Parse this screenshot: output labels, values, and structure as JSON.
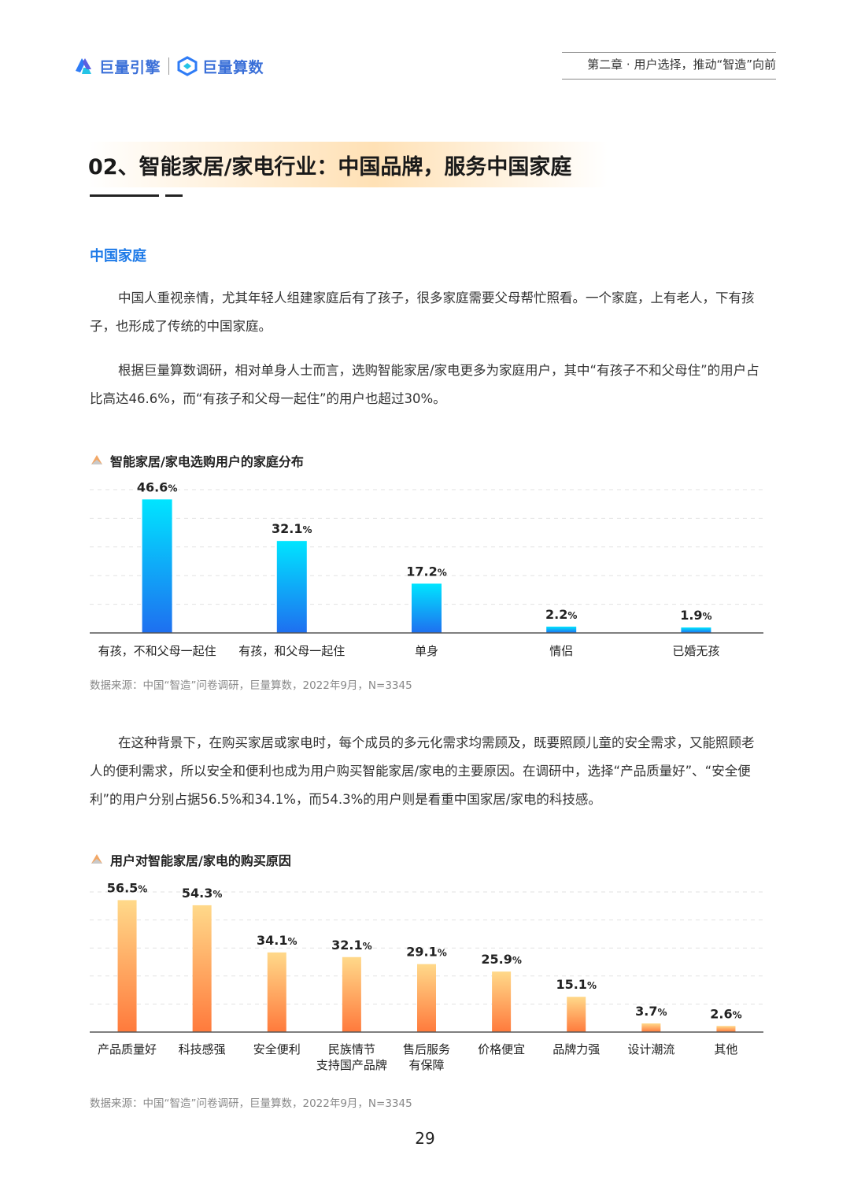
{
  "header": {
    "brand1": "巨量引擎",
    "brand2": "巨量算数",
    "chapter": "第二章 · 用户选择，推动“智造”向前"
  },
  "title": "02、智能家居/家电行业：中国品牌，服务中国家庭",
  "section_heading": "中国家庭",
  "paragraphs": [
    "中国人重视亲情，尤其年轻人组建家庭后有了孩子，很多家庭需要父母帮忙照看。一个家庭，上有老人，下有孩子，也形成了传统的中国家庭。",
    "根据巨量算数调研，相对单身人士而言，选购智能家居/家电更多为家庭用户，其中“有孩子不和父母住”的用户占比高达46.6%，而“有孩子和父母一起住”的用户也超过30%。",
    "在这种背景下，在购买家居或家电时，每个成员的多元化需求均需顾及，既要照顾儿童的安全需求，又能照顾老人的便利需求，所以安全和便利也成为用户购买智能家居/家电的主要原因。在调研中，选择“产品质量好”、“安全便利”的用户分别占据56.5%和34.1%，而54.3%的用户则是看重中国家居/家电的科技感。"
  ],
  "chart_data": [
    {
      "type": "bar",
      "title": "智能家居/家电选购用户的家庭分布",
      "categories": [
        "有孩，不和父母一起住",
        "有孩，和父母一起住",
        "单身",
        "情侣",
        "已婚无孩"
      ],
      "values": [
        46.6,
        32.1,
        17.2,
        2.2,
        1.9
      ],
      "unit": "%",
      "ylim": [
        0,
        50
      ],
      "grid": true,
      "colors": [
        "#00e5ff",
        "#1e6ff0"
      ],
      "source": "数据来源：中国“智造”问卷调研，巨量算数，2022年9月，N=3345"
    },
    {
      "type": "bar",
      "title": "用户对智能家居/家电的购买原因",
      "categories": [
        "产品质量好",
        "科技感强",
        "安全便利",
        "民族情节\n支持国产品牌",
        "售后服务\n有保障",
        "价格便宜",
        "品牌力强",
        "设计潮流",
        "其他"
      ],
      "values": [
        56.5,
        54.3,
        34.1,
        32.1,
        29.1,
        25.9,
        15.1,
        3.7,
        2.6
      ],
      "unit": "%",
      "ylim": [
        0,
        60
      ],
      "grid": true,
      "colors": [
        "#ffd98a",
        "#ff7a3c"
      ],
      "source": "数据来源：中国“智造”问卷调研，巨量算数，2022年9月，N=3345"
    }
  ],
  "page_number": "29"
}
